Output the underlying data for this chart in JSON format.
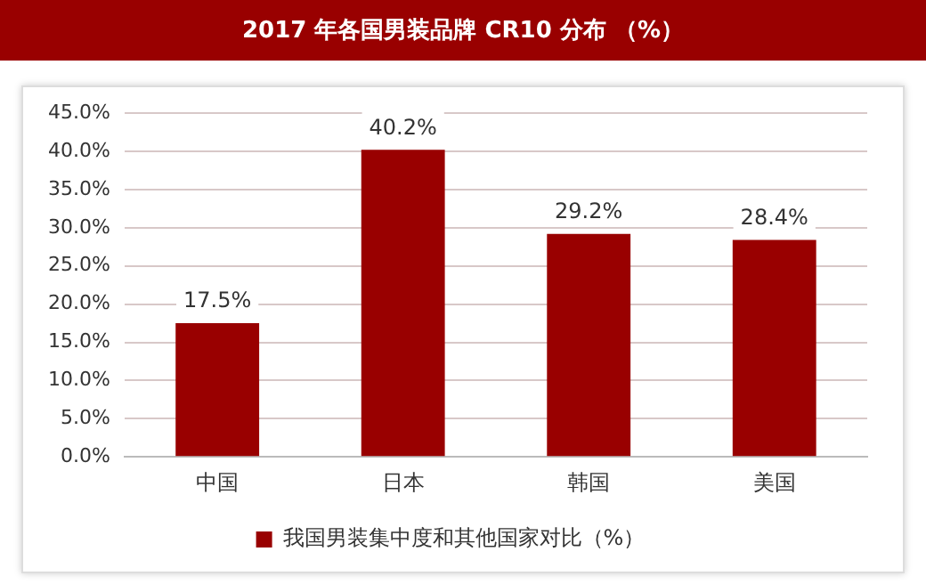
{
  "chart_data": {
    "type": "bar",
    "title": "2017 年各国男装品牌 CR10 分布 （%）",
    "categories": [
      "中国",
      "日本",
      "韩国",
      "美国"
    ],
    "series": [
      {
        "name": "我国男装集中度和其他国家对比（%）",
        "color": "#990000",
        "values": [
          17.5,
          40.2,
          29.2,
          28.4
        ],
        "value_labels": [
          "17.5%",
          "40.2%",
          "29.2%",
          "28.4%"
        ]
      }
    ],
    "ylim": [
      0,
      45
    ],
    "yticks": [
      {
        "value": 0,
        "label": "0.0%"
      },
      {
        "value": 5,
        "label": "5.0%"
      },
      {
        "value": 10,
        "label": "10.0%"
      },
      {
        "value": 15,
        "label": "15.0%"
      },
      {
        "value": 20,
        "label": "20.0%"
      },
      {
        "value": 25,
        "label": "25.0%"
      },
      {
        "value": 30,
        "label": "30.0%"
      },
      {
        "value": 35,
        "label": "35.0%"
      },
      {
        "value": 40,
        "label": "40.0%"
      },
      {
        "value": 45,
        "label": "45.0%"
      }
    ],
    "grid": "y",
    "legend": "bottom"
  }
}
